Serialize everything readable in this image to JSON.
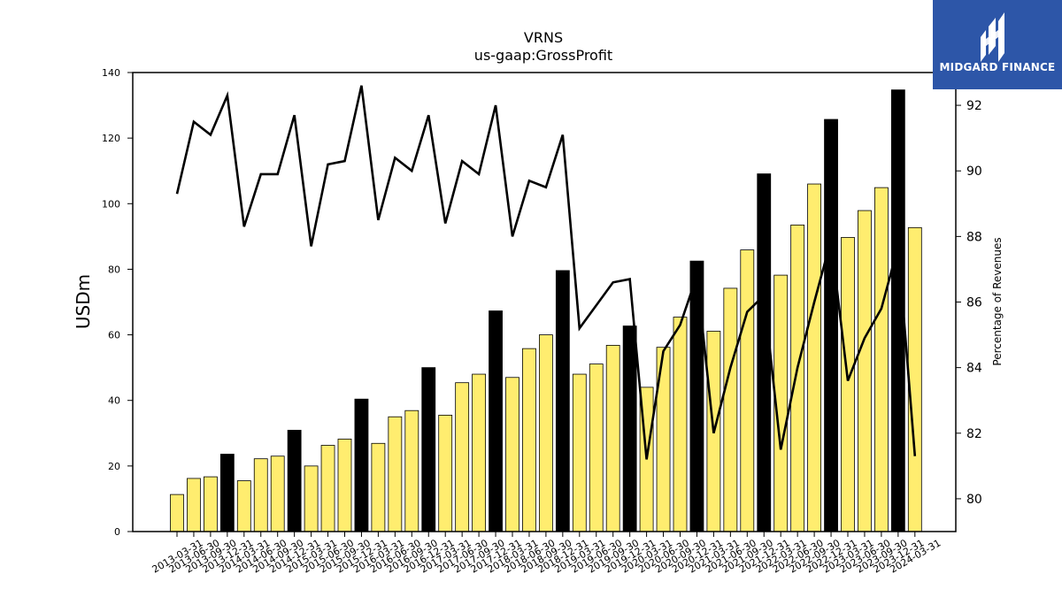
{
  "chart_data": {
    "type": "bar",
    "title": "VRNS",
    "subtitle": "us-gaap:GrossProfit",
    "ylabel": "USDm",
    "y2label": "Percentage of Revenues",
    "ylim": [
      0,
      140
    ],
    "y2lim": [
      79,
      93
    ],
    "yticks": [
      0,
      20,
      40,
      60,
      80,
      100,
      120,
      140
    ],
    "y2ticks": [
      80,
      82,
      84,
      86,
      88,
      90,
      92
    ],
    "grid": false,
    "categories": [
      "2013-03-31",
      "2013-06-30",
      "2013-09-30",
      "2013-12-31",
      "2014-03-31",
      "2014-06-30",
      "2014-09-30",
      "2014-12-31",
      "2015-03-31",
      "2015-06-30",
      "2015-09-30",
      "2015-12-31",
      "2016-03-31",
      "2016-06-30",
      "2016-09-30",
      "2016-12-31",
      "2017-03-31",
      "2017-06-30",
      "2017-09-30",
      "2017-12-31",
      "2018-03-31",
      "2018-06-30",
      "2018-09-30",
      "2018-12-31",
      "2019-03-31",
      "2019-06-30",
      "2019-09-30",
      "2019-12-31",
      "2020-03-31",
      "2020-06-30",
      "2020-09-30",
      "2020-12-31",
      "2021-03-31",
      "2021-06-30",
      "2021-09-30",
      "2021-12-31",
      "2022-03-31",
      "2022-06-30",
      "2022-09-30",
      "2022-12-31",
      "2023-03-31",
      "2023-06-30",
      "2023-09-30",
      "2023-12-31",
      "2024-03-31"
    ],
    "series": [
      {
        "type": "bar",
        "values": [
          11.3,
          16.2,
          16.7,
          23.6,
          15.5,
          22.2,
          23.0,
          30.9,
          20.0,
          26.3,
          28.2,
          40.4,
          26.9,
          35.0,
          36.9,
          50.0,
          35.5,
          45.4,
          48.0,
          67.3,
          47.0,
          55.8,
          60.0,
          79.6,
          48.0,
          51.1,
          56.8,
          62.7,
          44.0,
          56.2,
          65.4,
          82.5,
          61.1,
          74.2,
          85.9,
          109.1,
          78.2,
          93.5,
          106.0,
          125.7,
          89.7,
          97.9,
          104.9,
          134.7,
          92.7
        ],
        "highlight_colors": {
          "q4": "#000000",
          "other": "#ffed6f"
        }
      },
      {
        "type": "line",
        "axis": "right",
        "color": "#000000",
        "values": [
          89.3,
          91.5,
          91.1,
          92.3,
          88.3,
          89.9,
          89.9,
          91.7,
          87.7,
          90.2,
          90.3,
          92.6,
          88.5,
          90.4,
          90.0,
          91.7,
          88.4,
          90.3,
          89.9,
          92.0,
          88.0,
          89.7,
          89.5,
          91.1,
          85.2,
          85.9,
          86.6,
          86.7,
          81.2,
          84.5,
          85.3,
          86.8,
          82.0,
          84.0,
          85.7,
          86.2,
          81.5,
          84.0,
          86.0,
          87.9,
          83.6,
          84.9,
          85.8,
          87.7,
          81.3
        ]
      }
    ]
  },
  "logo": {
    "text": "MIDGARD FINANCE"
  }
}
